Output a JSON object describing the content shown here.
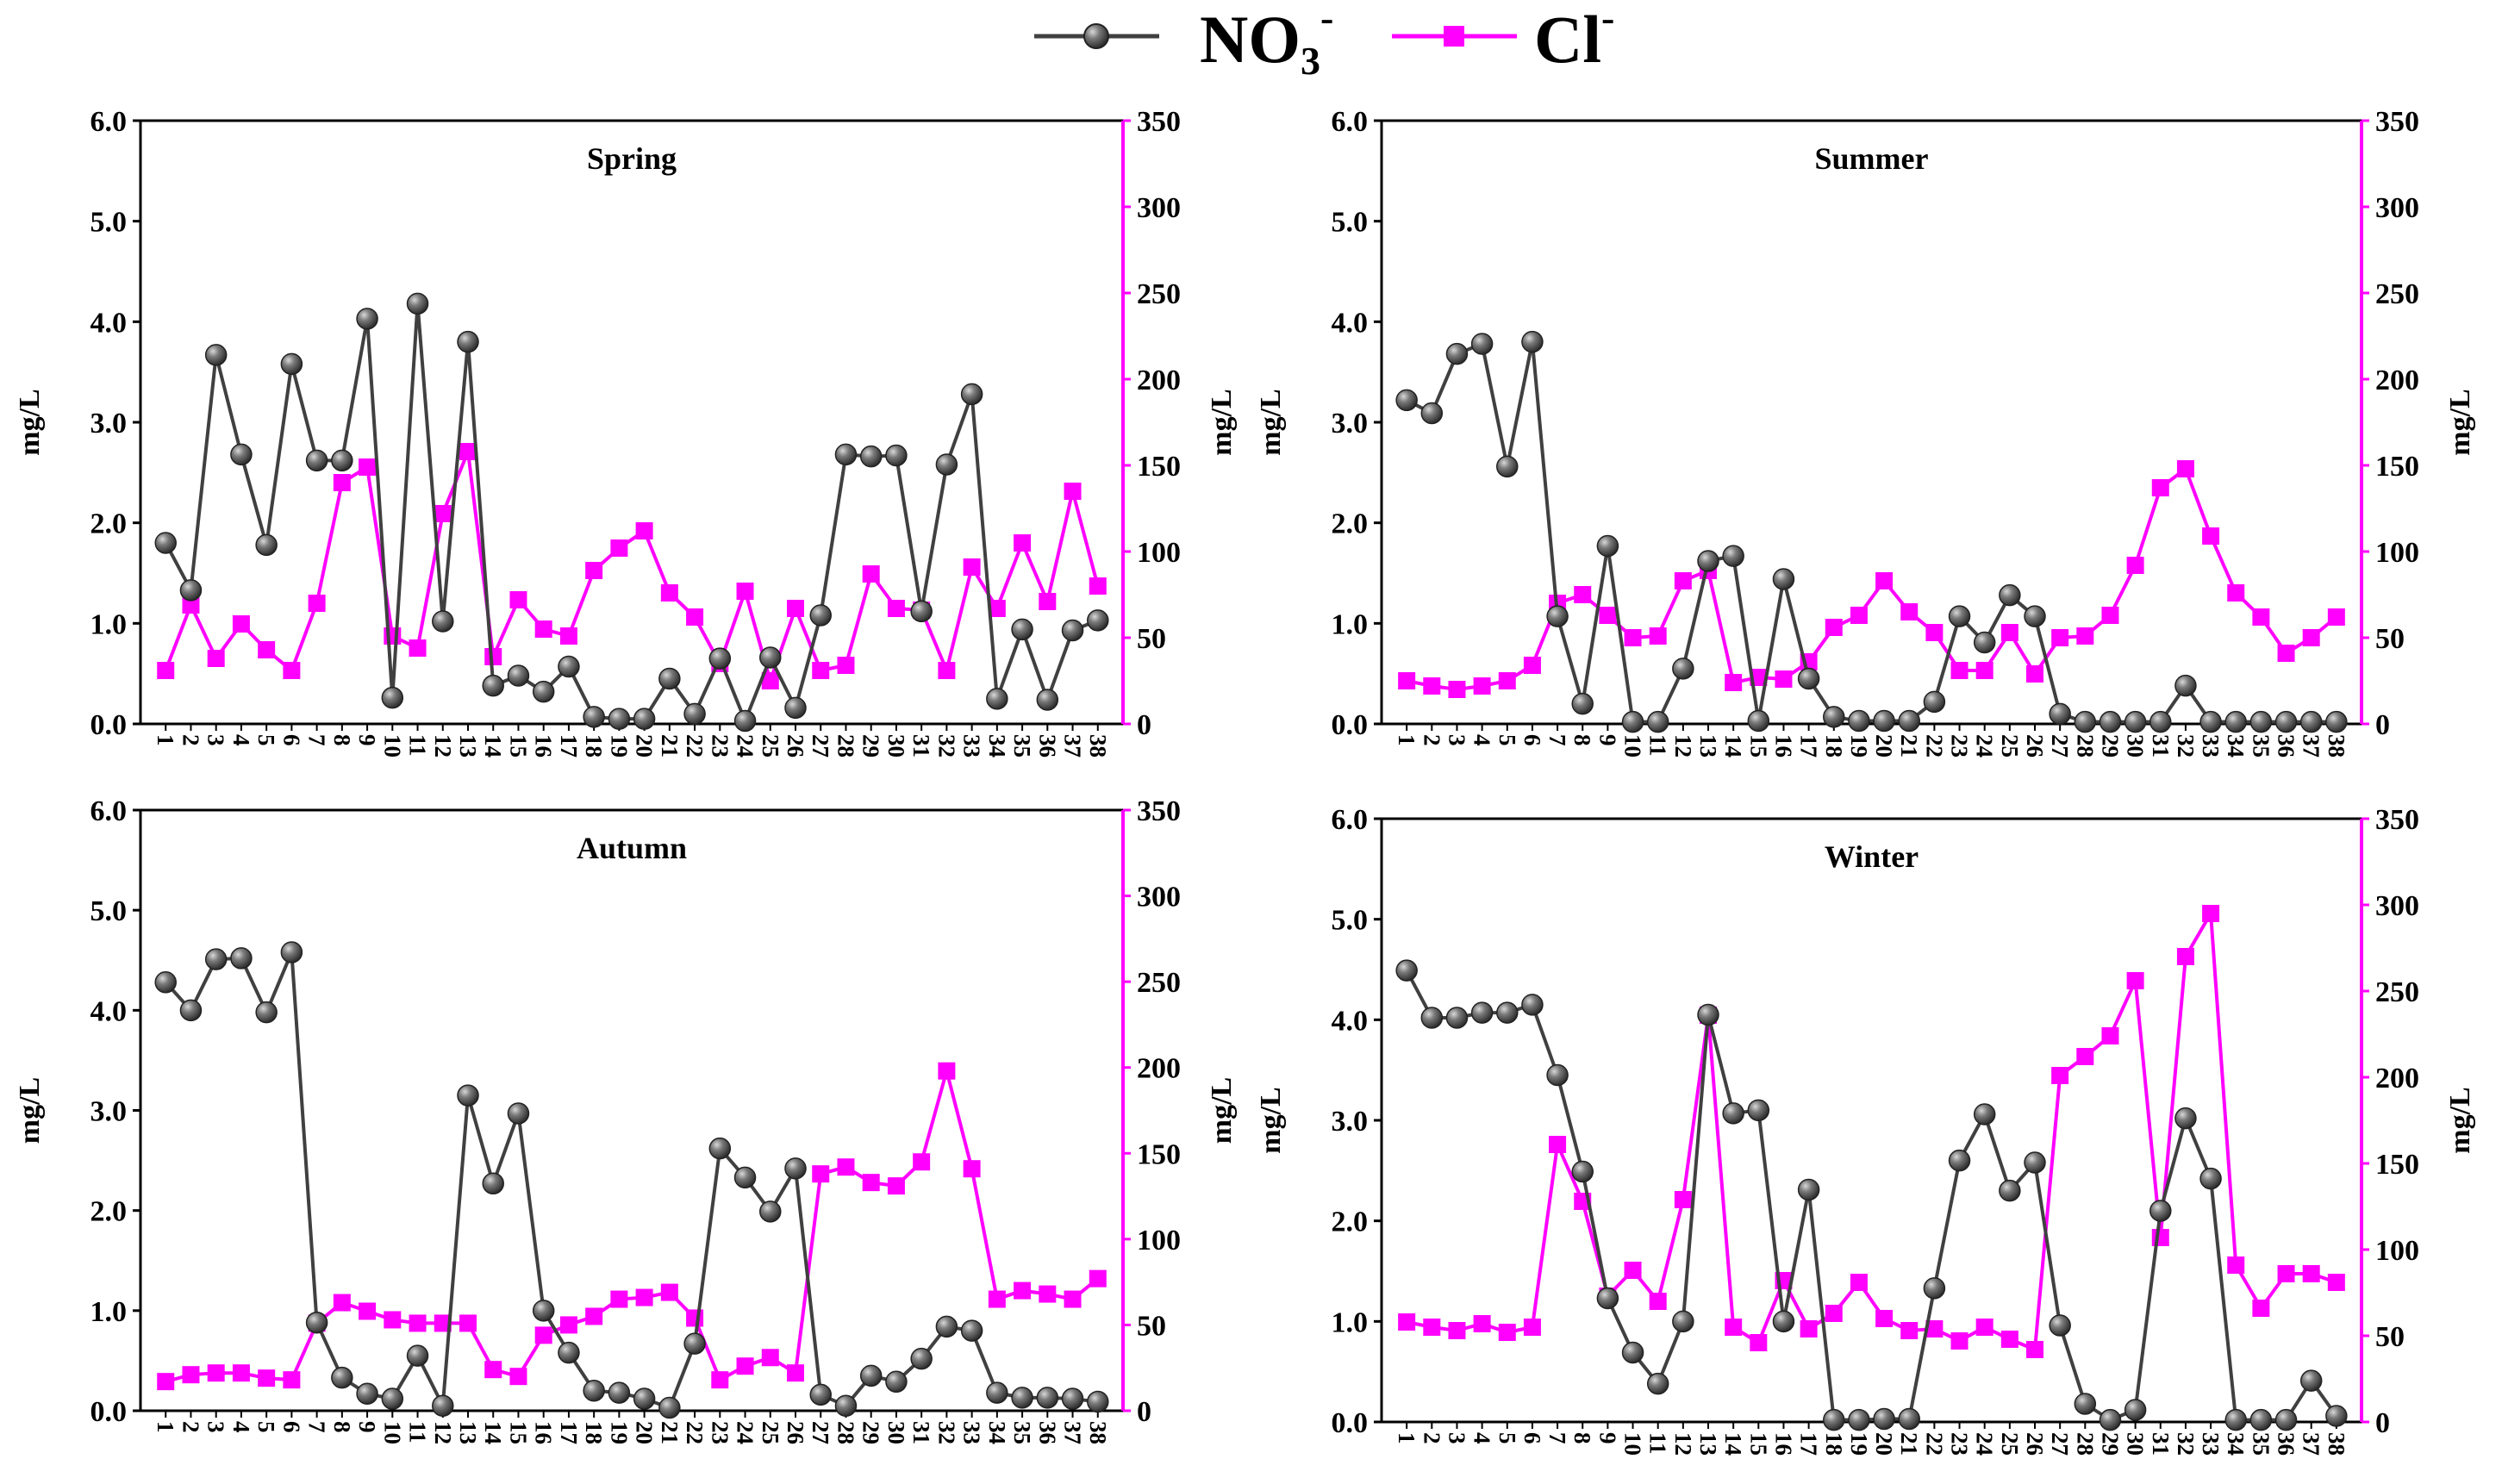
{
  "legend": {
    "no3": {
      "base": "NO",
      "sub": "3",
      "sup": "-",
      "line_color": "#404040",
      "marker_color": "#555555"
    },
    "cl": {
      "base": "Cl",
      "sup": "-",
      "color": "#ff00ff"
    }
  },
  "chart_data": [
    {
      "type": "line",
      "title": "Spring",
      "ylabel_left": "mg/L",
      "ylabel_right": "mg/L",
      "ylim_left": [
        0,
        6
      ],
      "ylim_right": [
        0,
        350
      ],
      "yticks_left": [
        "0.0",
        "1.0",
        "2.0",
        "3.0",
        "4.0",
        "5.0",
        "6.0"
      ],
      "yticks_right": [
        "0",
        "50",
        "100",
        "150",
        "200",
        "250",
        "300",
        "350"
      ],
      "categories": [
        "1",
        "2",
        "3",
        "4",
        "5",
        "6",
        "7",
        "8",
        "9",
        "10",
        "11",
        "12",
        "13",
        "14",
        "15",
        "16",
        "17",
        "18",
        "19",
        "20",
        "21",
        "22",
        "23",
        "24",
        "25",
        "26",
        "27",
        "28",
        "29",
        "30",
        "31",
        "32",
        "33",
        "34",
        "35",
        "36",
        "37",
        "38"
      ],
      "series": [
        {
          "name": "NO3-",
          "axis": "left",
          "values": [
            1.8,
            1.33,
            3.67,
            2.68,
            1.78,
            3.58,
            2.62,
            2.62,
            4.03,
            0.26,
            4.18,
            1.02,
            3.8,
            0.38,
            0.48,
            0.32,
            0.57,
            0.07,
            0.05,
            0.05,
            0.45,
            0.1,
            0.65,
            0.03,
            0.66,
            0.16,
            1.08,
            2.68,
            2.66,
            2.67,
            1.12,
            2.58,
            3.28,
            0.25,
            0.94,
            0.24,
            0.93,
            1.03
          ]
        },
        {
          "name": "Cl-",
          "axis": "right",
          "values": [
            31,
            69,
            38,
            58,
            43,
            31,
            70,
            140,
            149,
            51,
            44,
            122,
            158,
            39,
            72,
            55,
            51,
            89,
            102,
            112,
            76,
            62,
            35,
            77,
            25,
            67,
            31,
            34,
            87,
            67,
            66,
            31,
            91,
            67,
            105,
            71,
            135,
            80
          ]
        }
      ]
    },
    {
      "type": "line",
      "title": "Summer",
      "ylabel_left": "mg/L",
      "ylabel_right": "mg/L",
      "ylim_left": [
        0,
        6
      ],
      "ylim_right": [
        0,
        350
      ],
      "yticks_left": [
        "0.0",
        "1.0",
        "2.0",
        "3.0",
        "4.0",
        "5.0",
        "6.0"
      ],
      "yticks_right": [
        "0",
        "50",
        "100",
        "150",
        "200",
        "250",
        "300",
        "350"
      ],
      "categories": [
        "1",
        "2",
        "3",
        "4",
        "5",
        "6",
        "7",
        "8",
        "9",
        "10",
        "11",
        "12",
        "13",
        "14",
        "15",
        "16",
        "17",
        "18",
        "19",
        "20",
        "21",
        "22",
        "23",
        "24",
        "25",
        "26",
        "27",
        "28",
        "29",
        "30",
        "31",
        "32",
        "33",
        "34",
        "35",
        "36",
        "37",
        "38"
      ],
      "series": [
        {
          "name": "NO3-",
          "axis": "left",
          "values": [
            3.22,
            3.09,
            3.68,
            3.78,
            2.56,
            3.8,
            1.07,
            0.2,
            1.77,
            0.02,
            0.02,
            0.55,
            1.62,
            1.67,
            0.03,
            1.44,
            0.45,
            0.07,
            0.03,
            0.03,
            0.03,
            0.22,
            1.07,
            0.81,
            1.28,
            1.07,
            0.1,
            0.02,
            0.02,
            0.02,
            0.02,
            0.38,
            0.02,
            0.02,
            0.02,
            0.02,
            0.02,
            0.02
          ]
        },
        {
          "name": "Cl-",
          "axis": "right",
          "values": [
            25,
            22,
            20,
            22,
            25,
            34,
            70,
            75,
            63,
            50,
            51,
            83,
            89,
            24,
            27,
            26,
            36,
            56,
            63,
            83,
            65,
            53,
            31,
            31,
            53,
            29,
            50,
            51,
            63,
            92,
            137,
            148,
            109,
            76,
            62,
            41,
            50,
            62
          ]
        }
      ]
    },
    {
      "type": "line",
      "title": "Autumn",
      "ylabel_left": "mg/L",
      "ylabel_right": "mg/L",
      "ylim_left": [
        0,
        6
      ],
      "ylim_right": [
        0,
        350
      ],
      "yticks_left": [
        "0.0",
        "1.0",
        "2.0",
        "3.0",
        "4.0",
        "5.0",
        "6.0"
      ],
      "yticks_right": [
        "0",
        "50",
        "100",
        "150",
        "200",
        "250",
        "300",
        "350"
      ],
      "categories": [
        "1",
        "2",
        "3",
        "4",
        "5",
        "6",
        "7",
        "8",
        "9",
        "10",
        "11",
        "12",
        "13",
        "14",
        "15",
        "16",
        "17",
        "18",
        "19",
        "20",
        "21",
        "22",
        "23",
        "24",
        "25",
        "26",
        "27",
        "28",
        "29",
        "30",
        "31",
        "32",
        "33",
        "34",
        "35",
        "36",
        "37",
        "38"
      ],
      "series": [
        {
          "name": "NO3-",
          "axis": "left",
          "values": [
            4.28,
            4.0,
            4.51,
            4.52,
            3.98,
            4.58,
            0.88,
            0.33,
            0.17,
            0.12,
            0.55,
            0.05,
            3.15,
            2.27,
            2.97,
            1.0,
            0.58,
            0.2,
            0.18,
            0.12,
            0.03,
            0.67,
            2.62,
            2.33,
            1.99,
            2.42,
            0.16,
            0.05,
            0.35,
            0.29,
            0.52,
            0.84,
            0.8,
            0.18,
            0.13,
            0.13,
            0.12,
            0.09
          ]
        },
        {
          "name": "Cl-",
          "axis": "right",
          "values": [
            17,
            21,
            22,
            22,
            19,
            18,
            51,
            63,
            58,
            53,
            51,
            51,
            51,
            24,
            20,
            44,
            50,
            55,
            65,
            66,
            69,
            54,
            18,
            26,
            31,
            22,
            138,
            142,
            133,
            131,
            145,
            198,
            141,
            65,
            70,
            68,
            65,
            77
          ]
        }
      ]
    },
    {
      "type": "line",
      "title": "Winter",
      "ylabel_left": "mg/L",
      "ylabel_right": "mg/L",
      "ylim_left": [
        0,
        6
      ],
      "ylim_right": [
        0,
        350
      ],
      "yticks_left": [
        "0.0",
        "1.0",
        "2.0",
        "3.0",
        "4.0",
        "5.0",
        "6.0"
      ],
      "yticks_right": [
        "0",
        "50",
        "100",
        "150",
        "200",
        "250",
        "300",
        "350"
      ],
      "categories": [
        "1",
        "2",
        "3",
        "4",
        "5",
        "6",
        "7",
        "8",
        "9",
        "10",
        "11",
        "12",
        "13",
        "14",
        "15",
        "16",
        "17",
        "18",
        "19",
        "20",
        "21",
        "22",
        "23",
        "24",
        "25",
        "26",
        "27",
        "28",
        "29",
        "30",
        "31",
        "32",
        "33",
        "34",
        "35",
        "36",
        "37",
        "38"
      ],
      "series": [
        {
          "name": "NO3-",
          "axis": "left",
          "values": [
            4.49,
            4.02,
            4.02,
            4.07,
            4.07,
            4.15,
            3.45,
            2.49,
            1.23,
            0.69,
            0.38,
            1.0,
            4.05,
            3.07,
            3.1,
            1.0,
            2.31,
            0.02,
            0.02,
            0.03,
            0.03,
            1.33,
            2.6,
            3.06,
            2.3,
            2.58,
            0.96,
            0.18,
            0.02,
            0.12,
            2.1,
            3.02,
            2.42,
            0.02,
            0.02,
            0.02,
            0.41,
            0.06
          ]
        },
        {
          "name": "Cl-",
          "axis": "right",
          "values": [
            58,
            55,
            53,
            57,
            52,
            55,
            161,
            128,
            73,
            88,
            70,
            129,
            236,
            55,
            46,
            82,
            54,
            63,
            81,
            60,
            53,
            54,
            47,
            55,
            48,
            42,
            201,
            212,
            224,
            256,
            107,
            270,
            295,
            91,
            66,
            86,
            86,
            81
          ]
        }
      ]
    }
  ]
}
